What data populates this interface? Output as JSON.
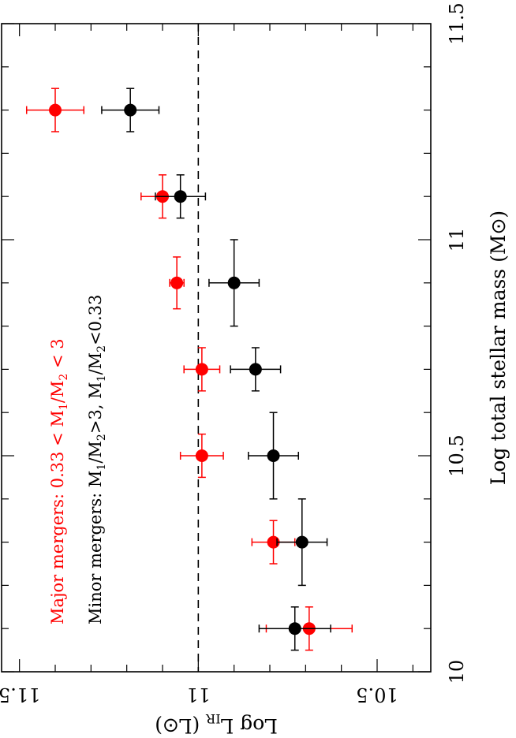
{
  "chart_data": {
    "type": "scatter",
    "orientation": "rotated-90-clockwise",
    "xlabel_parts": {
      "main": "Log total stellar mass (M",
      "sym": "⊙",
      "end": ")"
    },
    "ylabel_parts": {
      "main": "Log L",
      "sub": "IR",
      "mid": " (L",
      "sym": "⊙",
      "end": ")"
    },
    "xlim": [
      10,
      11.5
    ],
    "ylim": [
      10.35,
      11.55
    ],
    "x_ticks": [
      10,
      10.5,
      11,
      11.5
    ],
    "x_tick_labels": [
      "10",
      "10.5",
      "11",
      "11.5"
    ],
    "y_ticks": [
      10.5,
      11,
      11.5
    ],
    "y_tick_labels": [
      "10.5",
      "11",
      "11.5"
    ],
    "reference_line": {
      "axis": "y",
      "value": 11,
      "style": "dashed"
    },
    "legend": [
      {
        "parts": [
          {
            "t": "Major mergers: 0.33 < M"
          },
          {
            "t": "1",
            "sub": true
          },
          {
            "t": "/M"
          },
          {
            "t": "2",
            "sub": true
          },
          {
            "t": " < 3"
          }
        ],
        "color": "#ff0000"
      },
      {
        "parts": [
          {
            "t": "Minor mergers: M"
          },
          {
            "t": "1",
            "sub": true
          },
          {
            "t": "/M"
          },
          {
            "t": "2",
            "sub": true
          },
          {
            "t": ">3, M"
          },
          {
            "t": "1",
            "sub": true
          },
          {
            "t": "/M"
          },
          {
            "t": "2",
            "sub": true
          },
          {
            "t": "<0.33"
          }
        ],
        "color": "#000000"
      }
    ],
    "series": [
      {
        "color": "#ff0000",
        "points": [
          {
            "x": 10.1,
            "y": 10.69,
            "xerr": 0.05,
            "yerr": 0.12
          },
          {
            "x": 10.3,
            "y": 10.79,
            "xerr": 0.05,
            "yerr": 0.06
          },
          {
            "x": 10.5,
            "y": 10.99,
            "xerr": 0.05,
            "yerr": 0.06
          },
          {
            "x": 10.7,
            "y": 10.99,
            "xerr": 0.05,
            "yerr": 0.05
          },
          {
            "x": 10.9,
            "y": 11.06,
            "xerr": 0.06,
            "yerr": 0.02
          },
          {
            "x": 11.1,
            "y": 11.1,
            "xerr": 0.05,
            "yerr": 0.06
          },
          {
            "x": 11.3,
            "y": 11.4,
            "xerr": 0.05,
            "yerr": 0.08
          }
        ]
      },
      {
        "color": "#000000",
        "points": [
          {
            "x": 10.1,
            "y": 10.73,
            "xerr": 0.05,
            "yerr": 0.1
          },
          {
            "x": 10.3,
            "y": 10.71,
            "xerr": 0.1,
            "yerr": 0.07
          },
          {
            "x": 10.5,
            "y": 10.79,
            "xerr": 0.1,
            "yerr": 0.07
          },
          {
            "x": 10.7,
            "y": 10.84,
            "xerr": 0.05,
            "yerr": 0.07
          },
          {
            "x": 10.9,
            "y": 10.9,
            "xerr": 0.1,
            "yerr": 0.07
          },
          {
            "x": 11.1,
            "y": 11.05,
            "xerr": 0.05,
            "yerr": 0.07
          },
          {
            "x": 11.3,
            "y": 11.19,
            "xerr": 0.05,
            "yerr": 0.08
          }
        ]
      }
    ]
  }
}
